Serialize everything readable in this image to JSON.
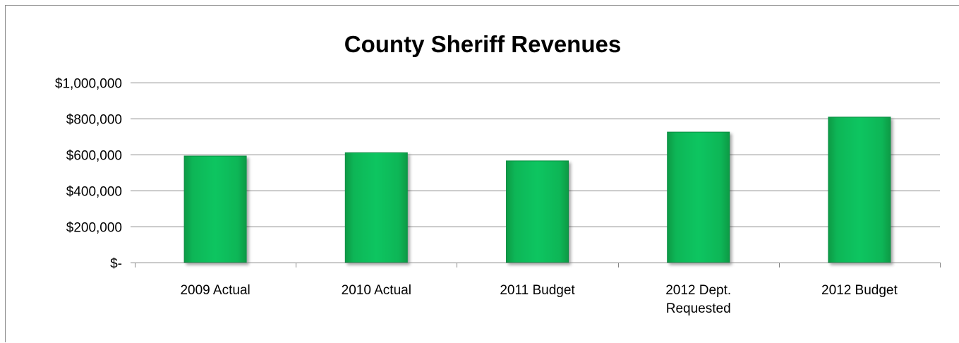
{
  "chart_data": {
    "type": "bar",
    "title": "County Sheriff Revenues",
    "xlabel": "",
    "ylabel": "",
    "categories": [
      [
        "2009 Actual"
      ],
      [
        "2010 Actual"
      ],
      [
        "2011 Budget"
      ],
      [
        "2012 Dept.",
        "Requested"
      ],
      [
        "2012 Budget"
      ]
    ],
    "values": [
      592000,
      610000,
      565000,
      725000,
      808000
    ],
    "ylim": [
      0,
      1000000
    ],
    "yticks": [
      0,
      200000,
      400000,
      600000,
      800000,
      1000000
    ],
    "ytick_labels": [
      "$-",
      "$200,000",
      "$400,000",
      "$600,000",
      "$800,000",
      "$1,000,000"
    ],
    "grid": true,
    "legend": "none",
    "colors": {
      "bar": "#0ebe5a",
      "bar_edge": "#0a8f44",
      "grid": "#868686",
      "axis": "#868686"
    }
  }
}
